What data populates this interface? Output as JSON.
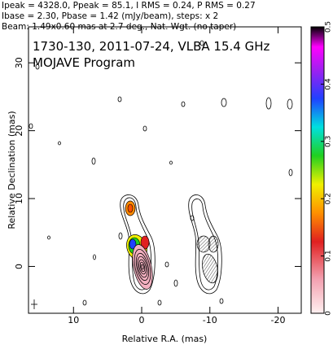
{
  "chart_data": {
    "type": "contour_map",
    "header": [
      "Ipeak = 4328.0, Ppeak = 85.1, I RMS = 0.24, P RMS = 0.27",
      "Ibase = 2.30, Pbase = 1.42 (mJy/beam), steps: x 2",
      "Beam: 1.49x0.60 mas at 2.7 deg., Nat. Wgt. (no taper)"
    ],
    "annotations": [
      "1730-130, 2011-07-24, VLBA 15.4 GHz",
      "MOJAVE Program"
    ],
    "xlabel": "Relative R.A. (mas)",
    "ylabel": "Relative Declination (mas)",
    "xlim": [
      16.6,
      -23.4
    ],
    "ylim": [
      -6.9,
      35.3
    ],
    "xticks": [
      10,
      0,
      -10,
      -20
    ],
    "yticks": [
      0,
      10,
      20,
      30
    ],
    "colorbar": {
      "lim": [
        0,
        0.5
      ],
      "ticks": [
        0,
        0.1,
        0.2,
        0.3,
        0.4,
        0.5
      ]
    }
  }
}
